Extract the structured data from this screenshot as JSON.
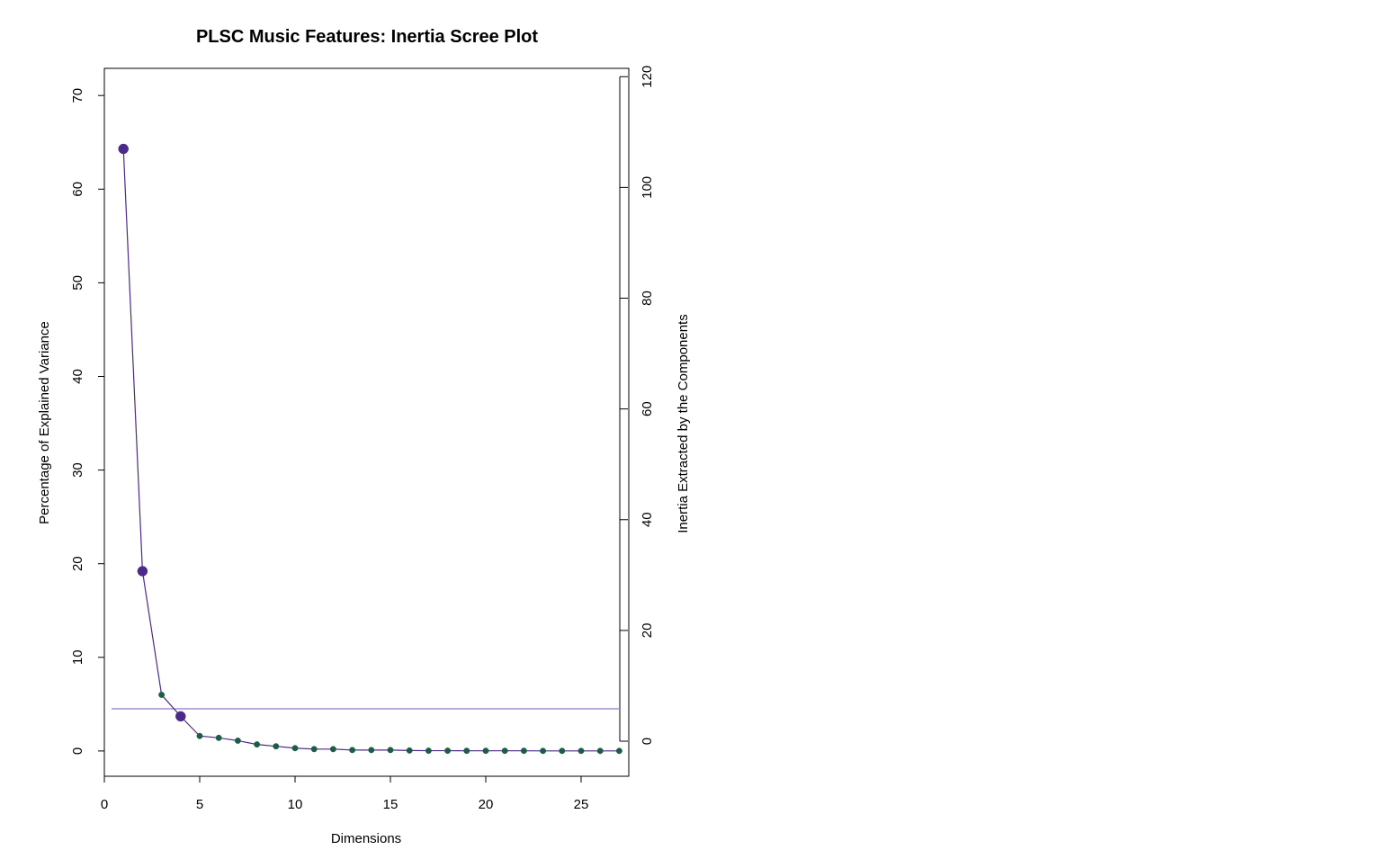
{
  "chart_data": {
    "type": "line",
    "title": "PLSC Music Features: Inertia Scree Plot",
    "xlabel": "Dimensions",
    "ylabel": "Percentage of Explained Variance",
    "ylabel_right": "Inertia Extracted by the Components",
    "xlim": [
      0,
      27.5
    ],
    "ylim": [
      -2.7,
      72.9
    ],
    "ylim_right": [
      -6.33,
      121.5
    ],
    "x_ticks": [
      "0",
      "5",
      "10",
      "15",
      "20",
      "25"
    ],
    "y_ticks": [
      "0",
      "10",
      "20",
      "30",
      "40",
      "50",
      "60",
      "70"
    ],
    "y_right_ticks": [
      "0",
      "20",
      "40",
      "60",
      "80",
      "100",
      "120"
    ],
    "series": [
      {
        "x": [
          1,
          2,
          3,
          4,
          5,
          6,
          7,
          8,
          9,
          10,
          11,
          12,
          13,
          14,
          15,
          16,
          17,
          18,
          19,
          20,
          21,
          22,
          23,
          24,
          25,
          26,
          27
        ],
        "values": [
          64.3,
          19.2,
          6.0,
          3.7,
          1.6,
          1.4,
          1.1,
          0.7,
          0.5,
          0.3,
          0.2,
          0.2,
          0.1,
          0.1,
          0.1,
          0.05,
          0.03,
          0.03,
          0.02,
          0.02,
          0.02,
          0.02,
          0.01,
          0.01,
          0.01,
          0.01,
          0.01
        ],
        "significant": [
          true,
          true,
          false,
          true,
          false,
          false,
          false,
          false,
          false,
          false,
          false,
          false,
          false,
          false,
          false,
          false,
          false,
          false,
          false,
          false,
          false,
          false,
          false,
          false,
          false,
          false,
          false
        ]
      }
    ],
    "reference_line": 4.5,
    "colors": {
      "line": "#4b2a8a",
      "significant_point": "#4b2a8a",
      "other_point": "#1b5e45",
      "reference_line": "#a38ed0"
    },
    "grid": false,
    "legend": "none"
  }
}
